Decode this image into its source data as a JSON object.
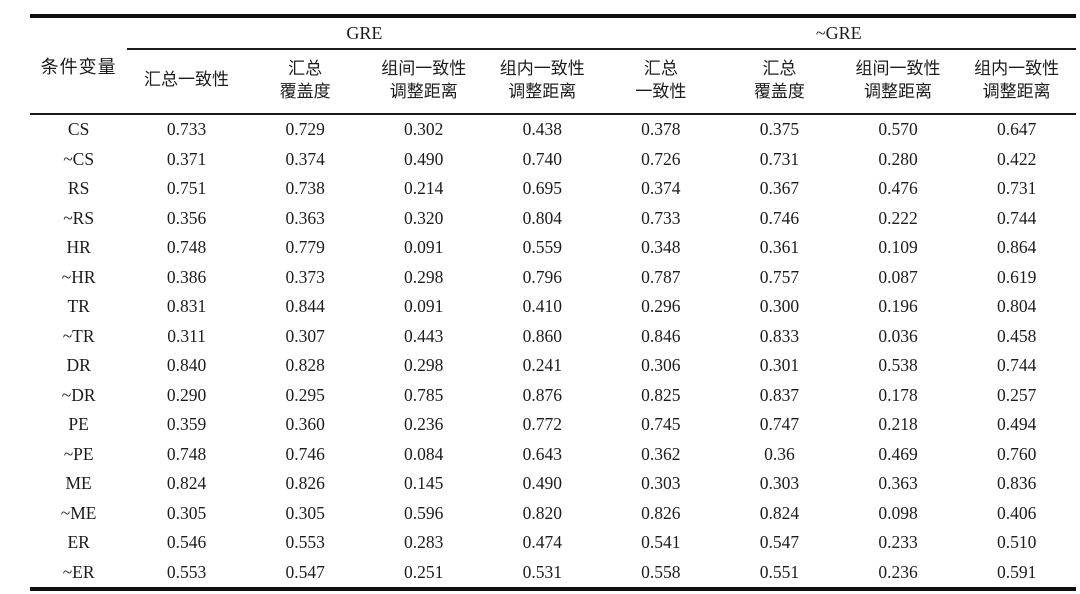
{
  "table": {
    "condition_header": "条件变量",
    "groups": [
      {
        "label": "GRE"
      },
      {
        "label": "~GRE"
      }
    ],
    "subheaders": [
      [
        "汇总一致性"
      ],
      [
        "汇总",
        "覆盖度"
      ],
      [
        "组间一致性",
        "调整距离"
      ],
      [
        "组内一致性",
        "调整距离"
      ],
      [
        "汇总",
        "一致性"
      ],
      [
        "汇总",
        "覆盖度"
      ],
      [
        "组间一致性",
        "调整距离"
      ],
      [
        "组内一致性",
        "调整距离"
      ]
    ],
    "rows": [
      {
        "label": "CS",
        "values": [
          "0.733",
          "0.729",
          "0.302",
          "0.438",
          "0.378",
          "0.375",
          "0.570",
          "0.647"
        ]
      },
      {
        "label": "~CS",
        "values": [
          "0.371",
          "0.374",
          "0.490",
          "0.740",
          "0.726",
          "0.731",
          "0.280",
          "0.422"
        ]
      },
      {
        "label": "RS",
        "values": [
          "0.751",
          "0.738",
          "0.214",
          "0.695",
          "0.374",
          "0.367",
          "0.476",
          "0.731"
        ]
      },
      {
        "label": "~RS",
        "values": [
          "0.356",
          "0.363",
          "0.320",
          "0.804",
          "0.733",
          "0.746",
          "0.222",
          "0.744"
        ]
      },
      {
        "label": "HR",
        "values": [
          "0.748",
          "0.779",
          "0.091",
          "0.559",
          "0.348",
          "0.361",
          "0.109",
          "0.864"
        ]
      },
      {
        "label": "~HR",
        "values": [
          "0.386",
          "0.373",
          "0.298",
          "0.796",
          "0.787",
          "0.757",
          "0.087",
          "0.619"
        ]
      },
      {
        "label": "TR",
        "values": [
          "0.831",
          "0.844",
          "0.091",
          "0.410",
          "0.296",
          "0.300",
          "0.196",
          "0.804"
        ]
      },
      {
        "label": "~TR",
        "values": [
          "0.311",
          "0.307",
          "0.443",
          "0.860",
          "0.846",
          "0.833",
          "0.036",
          "0.458"
        ]
      },
      {
        "label": "DR",
        "values": [
          "0.840",
          "0.828",
          "0.298",
          "0.241",
          "0.306",
          "0.301",
          "0.538",
          "0.744"
        ]
      },
      {
        "label": "~DR",
        "values": [
          "0.290",
          "0.295",
          "0.785",
          "0.876",
          "0.825",
          "0.837",
          "0.178",
          "0.257"
        ]
      },
      {
        "label": "PE",
        "values": [
          "0.359",
          "0.360",
          "0.236",
          "0.772",
          "0.745",
          "0.747",
          "0.218",
          "0.494"
        ]
      },
      {
        "label": "~PE",
        "values": [
          "0.748",
          "0.746",
          "0.084",
          "0.643",
          "0.362",
          "0.36",
          "0.469",
          "0.760"
        ]
      },
      {
        "label": "ME",
        "values": [
          "0.824",
          "0.826",
          "0.145",
          "0.490",
          "0.303",
          "0.303",
          "0.363",
          "0.836"
        ]
      },
      {
        "label": "~ME",
        "values": [
          "0.305",
          "0.305",
          "0.596",
          "0.820",
          "0.826",
          "0.824",
          "0.098",
          "0.406"
        ]
      },
      {
        "label": "ER",
        "values": [
          "0.546",
          "0.553",
          "0.283",
          "0.474",
          "0.541",
          "0.547",
          "0.233",
          "0.510"
        ]
      },
      {
        "label": "~ER",
        "values": [
          "0.553",
          "0.547",
          "0.251",
          "0.531",
          "0.558",
          "0.551",
          "0.236",
          "0.591"
        ]
      }
    ]
  }
}
